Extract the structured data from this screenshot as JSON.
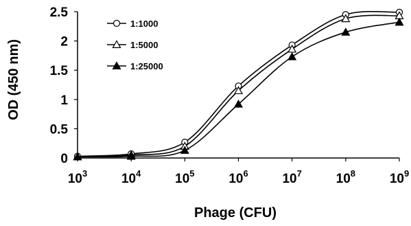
{
  "chart_data": {
    "type": "line",
    "x_scale": "log",
    "xlabel": "Phage (CFU)",
    "ylabel": "OD (450 nm)",
    "xlim": [
      1000,
      1000000000
    ],
    "ylim": [
      0,
      2.5
    ],
    "x_ticks": [
      {
        "base": "10",
        "exp": "3",
        "value": 1000
      },
      {
        "base": "10",
        "exp": "4",
        "value": 10000
      },
      {
        "base": "10",
        "exp": "5",
        "value": 100000
      },
      {
        "base": "10",
        "exp": "6",
        "value": 1000000
      },
      {
        "base": "10",
        "exp": "7",
        "value": 10000000
      },
      {
        "base": "10",
        "exp": "8",
        "value": 100000000
      },
      {
        "base": "10",
        "exp": "9",
        "value": 1000000000
      }
    ],
    "y_ticks": [
      {
        "label": "0",
        "value": 0
      },
      {
        "label": "0.5",
        "value": 0.5
      },
      {
        "label": "1",
        "value": 1
      },
      {
        "label": "1.5",
        "value": 1.5
      },
      {
        "label": "2",
        "value": 2
      },
      {
        "label": "2.5",
        "value": 2.5
      }
    ],
    "grid": false,
    "legend_position": "top-left",
    "x": [
      1000,
      10000,
      100000,
      1000000,
      10000000,
      100000000,
      1000000000
    ],
    "series": [
      {
        "name": "1:1000",
        "marker": "circle-open",
        "values": [
          0.03,
          0.07,
          0.27,
          1.23,
          1.93,
          2.45,
          2.49
        ]
      },
      {
        "name": "1:5000",
        "marker": "triangle-open",
        "values": [
          0.02,
          0.05,
          0.2,
          1.15,
          1.86,
          2.38,
          2.43
        ]
      },
      {
        "name": "1:25000",
        "marker": "triangle-filled",
        "values": [
          0.02,
          0.03,
          0.13,
          0.92,
          1.73,
          2.15,
          2.32
        ]
      }
    ]
  }
}
